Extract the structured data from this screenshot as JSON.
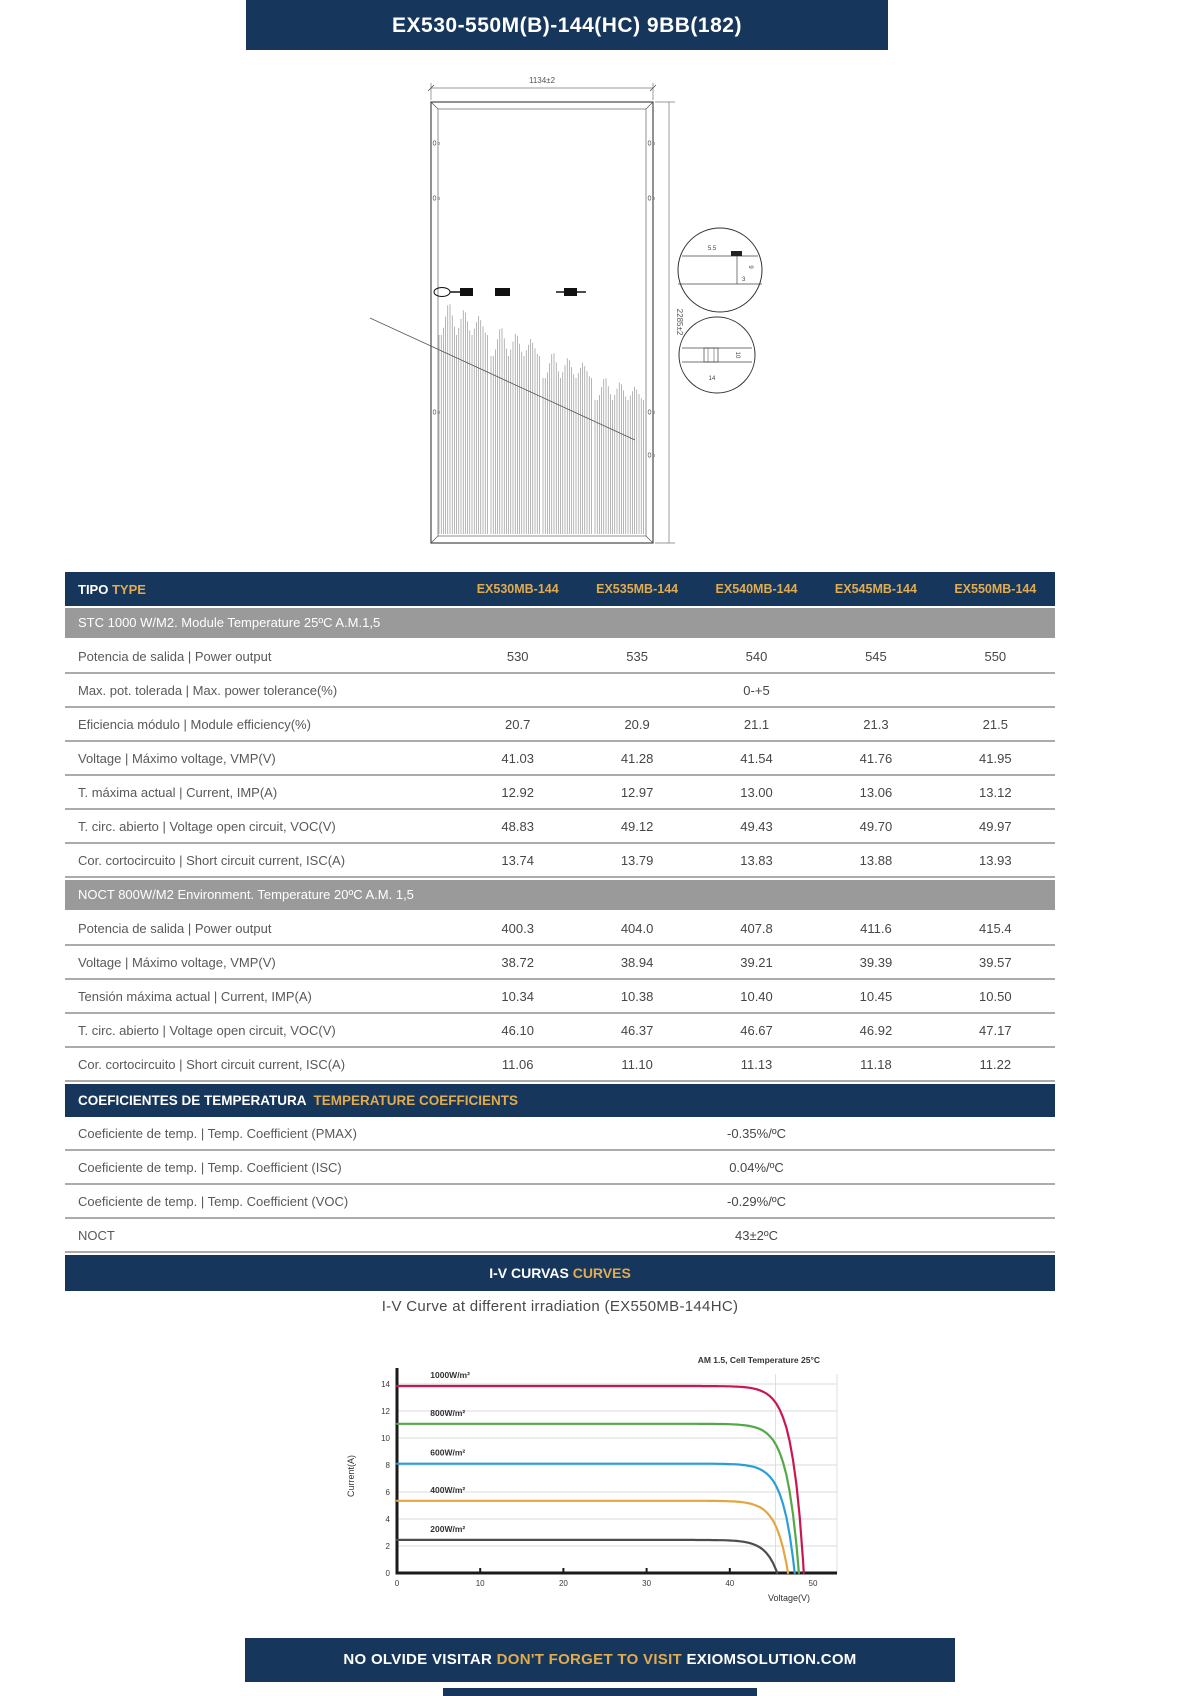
{
  "page": {
    "title": "EX530-550M(B)-144(HC) 9BB(182)"
  },
  "colors": {
    "navy": "#16365C",
    "gold": "#E0AC4E",
    "section_gray": "#9A9A9A"
  },
  "drawing": {
    "top_dimension": "1134±2",
    "side_dimension": "2285±2",
    "hole_label": "0",
    "detail_top": {
      "labels": [
        "5.5",
        "9",
        "3"
      ]
    },
    "detail_bottom": {
      "labels": [
        "10",
        "14"
      ]
    }
  },
  "table": {
    "header": {
      "label_es": "TIPO",
      "label_en": "TYPE",
      "columns": [
        "EX530MB-144",
        "EX535MB-144",
        "EX540MB-144",
        "EX545MB-144",
        "EX550MB-144"
      ]
    },
    "rows": [
      {
        "kind": "section",
        "label": "STC 1000 W/M2. Module Temperature 25ºC A.M.1,5"
      },
      {
        "kind": "data",
        "label": "Potencia de salida | Power output",
        "values": [
          "530",
          "535",
          "540",
          "545",
          "550"
        ]
      },
      {
        "kind": "span",
        "label": "Max. pot. tolerada | Max. power tolerance(%)",
        "value": "0-+5"
      },
      {
        "kind": "data",
        "label": "Eficiencia módulo | Module efficiency(%)",
        "values": [
          "20.7",
          "20.9",
          "21.1",
          "21.3",
          "21.5"
        ]
      },
      {
        "kind": "data",
        "label": "Voltage | Máximo voltage, VMP(V)",
        "values": [
          "41.03",
          "41.28",
          "41.54",
          "41.76",
          "41.95"
        ]
      },
      {
        "kind": "data",
        "label": "T. máxima actual | Current, IMP(A)",
        "values": [
          "12.92",
          "12.97",
          "13.00",
          "13.06",
          "13.12"
        ]
      },
      {
        "kind": "data",
        "label": "T. circ. abierto | Voltage open circuit, VOC(V)",
        "values": [
          "48.83",
          "49.12",
          "49.43",
          "49.70",
          "49.97"
        ]
      },
      {
        "kind": "data",
        "label": "Cor. cortocircuito | Short circuit current, ISC(A)",
        "values": [
          "13.74",
          "13.79",
          "13.83",
          "13.88",
          "13.93"
        ]
      },
      {
        "kind": "section",
        "label": "NOCT 800W/M2 Environment. Temperature 20ºC A.M. 1,5"
      },
      {
        "kind": "data",
        "label": "Potencia de salida | Power output",
        "values": [
          "400.3",
          "404.0",
          "407.8",
          "411.6",
          "415.4"
        ]
      },
      {
        "kind": "data",
        "label": "Voltage | Máximo voltage, VMP(V)",
        "values": [
          "38.72",
          "38.94",
          "39.21",
          "39.39",
          "39.57"
        ]
      },
      {
        "kind": "data",
        "label": "Tensión máxima actual | Current, IMP(A)",
        "values": [
          "10.34",
          "10.38",
          "10.40",
          "10.45",
          "10.50"
        ]
      },
      {
        "kind": "data",
        "label": "T. circ. abierto | Voltage open circuit, VOC(V)",
        "values": [
          "46.10",
          "46.37",
          "46.67",
          "46.92",
          "47.17"
        ]
      },
      {
        "kind": "data",
        "label": "Cor. cortocircuito | Short circuit current, ISC(A)",
        "values": [
          "11.06",
          "11.10",
          "11.13",
          "11.18",
          "11.22"
        ]
      },
      {
        "kind": "banner",
        "label_es": "COEFICIENTES DE TEMPERATURA",
        "label_en": "TEMPERATURE COEFFICIENTS"
      },
      {
        "kind": "span",
        "label": "Coeficiente de temp.  | Temp. Coefficient (PMAX)",
        "value": "-0.35%/ºC"
      },
      {
        "kind": "span",
        "label": "Coeficiente de temp. | Temp. Coefficient (ISC)",
        "value": "0.04%/ºC"
      },
      {
        "kind": "span",
        "label": "Coeficiente de temp. | Temp. Coefficient (VOC)",
        "value": "-0.29%/ºC"
      },
      {
        "kind": "span",
        "label": "NOCT",
        "value": "43±2ºC"
      }
    ]
  },
  "iv_banner": {
    "es": "I-V CURVAS",
    "en": "CURVES"
  },
  "chart_data": {
    "type": "line",
    "title": "I-V Curve at different irradiation (EX550MB-144HC)",
    "annotation": "AM 1.5, Cell Temperature 25°C",
    "xlabel": "Voltage(V)",
    "ylabel": "Current(A)",
    "xlim": [
      0,
      50
    ],
    "ylim": [
      0,
      14
    ],
    "xticks": [
      0,
      10,
      20,
      30,
      40,
      50
    ],
    "yticks": [
      0,
      2,
      4,
      6,
      8,
      10,
      12,
      14
    ],
    "grid": true,
    "legend_position": "inline-labels",
    "series": [
      {
        "label": "1000W/m²",
        "isc_a": 13.85,
        "voc_v": 48.9,
        "color": "#C9184E"
      },
      {
        "label": "800W/m²",
        "isc_a": 11.05,
        "voc_v": 48.3,
        "color": "#53A948"
      },
      {
        "label": "600W/m²",
        "isc_a": 8.1,
        "voc_v": 47.8,
        "color": "#2D9DD5"
      },
      {
        "label": "400W/m²",
        "isc_a": 5.35,
        "voc_v": 47.0,
        "color": "#E5A63F"
      },
      {
        "label": "200W/m²",
        "isc_a": 2.45,
        "voc_v": 45.7,
        "color": "#4D4D4D"
      }
    ]
  },
  "footer": {
    "es": "NO OLVIDE VISITAR",
    "en": "DON'T FORGET TO VISIT",
    "site": "EXIOMSOLUTION.COM"
  }
}
